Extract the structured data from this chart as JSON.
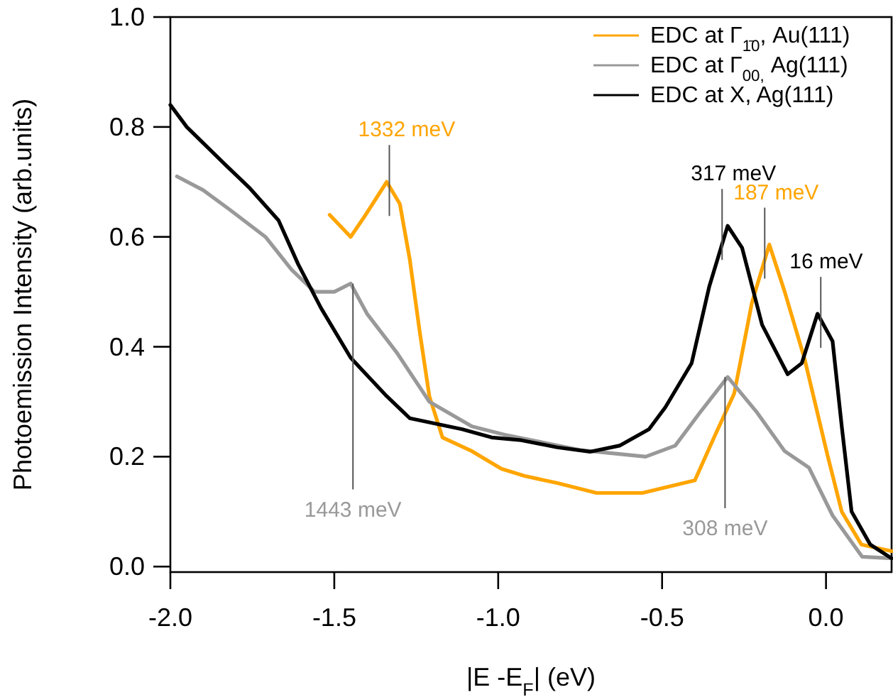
{
  "chart_data": {
    "type": "line",
    "xlabel": "|E -E$_{F}$| (eV)",
    "ylabel": "Photoemission Intensity (arb.units)",
    "xlim": [
      -2.0,
      0.2
    ],
    "ylim": [
      -0.01,
      1.0
    ],
    "xticks": [
      {
        "value": -2,
        "label": "-2.0"
      },
      {
        "value": -1.5,
        "label": "-1.5"
      },
      {
        "value": -1,
        "label": "-1.0"
      },
      {
        "value": -0.5,
        "label": "-0.5"
      },
      {
        "value": 0,
        "label": "0.0"
      }
    ],
    "yticks": [
      {
        "value": 0,
        "label": "0.0"
      },
      {
        "value": 0.2,
        "label": "0.2"
      },
      {
        "value": 0.4,
        "label": "0.4"
      },
      {
        "value": 0.6,
        "label": "0.6"
      },
      {
        "value": 0.8,
        "label": "0.8"
      },
      {
        "value": 1,
        "label": "1.0"
      }
    ],
    "legend": "top right",
    "grid": false,
    "marker": "none",
    "line_style": "solid",
    "series": [
      {
        "name": "EDC at  Γ$_{1̄0}$,  Au(111)",
        "color": "#ffa500",
        "x": [
          -1.514,
          -1.45,
          -1.41,
          -1.34,
          -1.3,
          -1.27,
          -1.24,
          -1.21,
          -1.17,
          -1.08,
          -0.99,
          -0.92,
          -0.82,
          -0.7,
          -0.56,
          -0.4,
          -0.34,
          -0.28,
          -0.226,
          -0.173,
          -0.126,
          -0.065,
          0.004,
          0.048,
          0.108,
          0.2
        ],
        "values": [
          0.64,
          0.6,
          0.635,
          0.7,
          0.66,
          0.56,
          0.43,
          0.31,
          0.235,
          0.21,
          0.178,
          0.165,
          0.152,
          0.134,
          0.134,
          0.157,
          0.237,
          0.315,
          0.48,
          0.586,
          0.5,
          0.377,
          0.204,
          0.1,
          0.04,
          0.028
        ]
      },
      {
        "name": "EDC at  Γ$_{00,}$ Ag(111)",
        "color": "#999999",
        "x": [
          -1.98,
          -1.9,
          -1.82,
          -1.71,
          -1.63,
          -1.56,
          -1.5,
          -1.45,
          -1.4,
          -1.31,
          -1.21,
          -1.08,
          -0.98,
          -0.75,
          -0.55,
          -0.46,
          -0.385,
          -0.3,
          -0.21,
          -0.126,
          -0.052,
          0.02,
          0.11,
          0.2
        ],
        "values": [
          0.71,
          0.685,
          0.65,
          0.6,
          0.54,
          0.5,
          0.5,
          0.515,
          0.46,
          0.39,
          0.3,
          0.255,
          0.24,
          0.212,
          0.2,
          0.22,
          0.28,
          0.345,
          0.28,
          0.21,
          0.18,
          0.093,
          0.018,
          0.015
        ]
      },
      {
        "name": "EDC at  X,  Ag(111)",
        "color": "#000000",
        "x": [
          -2.0,
          -1.95,
          -1.83,
          -1.76,
          -1.67,
          -1.61,
          -1.54,
          -1.45,
          -1.34,
          -1.27,
          -1.19,
          -1.11,
          -1.02,
          -0.93,
          -0.82,
          -0.72,
          -0.63,
          -0.54,
          -0.49,
          -0.41,
          -0.356,
          -0.3,
          -0.256,
          -0.195,
          -0.117,
          -0.074,
          -0.026,
          0.02,
          0.048,
          0.078,
          0.135,
          0.2
        ],
        "values": [
          0.84,
          0.8,
          0.73,
          0.69,
          0.63,
          0.55,
          0.47,
          0.38,
          0.31,
          0.27,
          0.26,
          0.25,
          0.235,
          0.23,
          0.217,
          0.209,
          0.22,
          0.25,
          0.29,
          0.37,
          0.51,
          0.62,
          0.58,
          0.44,
          0.35,
          0.37,
          0.46,
          0.41,
          0.255,
          0.1,
          0.04,
          0.015
        ]
      }
    ],
    "annotations": [
      {
        "text": "1332 meV",
        "x": -1.332,
        "y": 0.7
      },
      {
        "text": "1443 meV",
        "x": -1.443,
        "y": 0.515
      },
      {
        "text": "317 meV",
        "x": -0.317,
        "y": 0.62
      },
      {
        "text": "187 meV",
        "x": -0.187,
        "y": 0.586
      },
      {
        "text": "16 meV",
        "x": -0.016,
        "y": 0.46
      },
      {
        "text": "308 meV",
        "x": -0.308,
        "y": 0.345
      }
    ]
  }
}
